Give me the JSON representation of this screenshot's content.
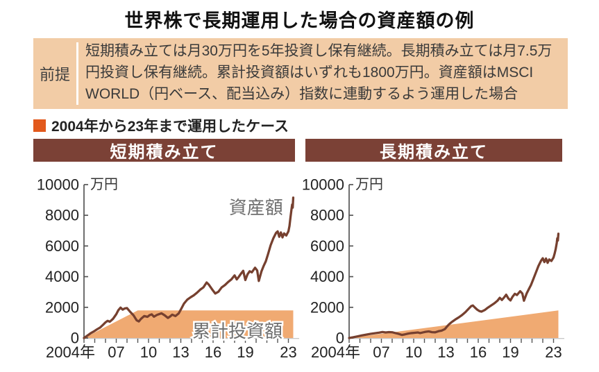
{
  "title": "世界株で長期運用した場合の資産額の例",
  "premise": {
    "label": "前提",
    "text": "短期積み立ては月30万円を5年投資し保有継続。長期積み立ては月7.5万円投資し保有継続。累計投資額はいずれも1800万円。資産額はMSCI WORLD（円ベース、配当込み）指数に連動するよう運用した場合",
    "bg_color": "#f2cca6"
  },
  "legend": {
    "marker_color": "#e2591c",
    "label": "2004年から23年まで運用したケース"
  },
  "colors": {
    "header_bar": "#7b4136",
    "header_text": "#ffffff",
    "line": "#76402f",
    "area": "#f0aa72",
    "axis": "#555555",
    "tick_text": "#222222",
    "label_gray": "#6e6e6e"
  },
  "chart_data": [
    {
      "type": "line",
      "title": "短期積み立て",
      "unit_label": "万円",
      "ylim": [
        0,
        10000
      ],
      "yticks": [
        0,
        2000,
        4000,
        6000,
        8000,
        10000
      ],
      "xlim": [
        2004,
        2024
      ],
      "xtick_labels": [
        {
          "label": "2004年",
          "year": 2004,
          "anchor": "end",
          "dx": 16
        },
        {
          "label": "07",
          "year": 2007
        },
        {
          "label": "10",
          "year": 2010
        },
        {
          "label": "13",
          "year": 2013
        },
        {
          "label": "16",
          "year": 2016
        },
        {
          "label": "19",
          "year": 2019
        },
        {
          "label": "23",
          "year": 2023
        }
      ],
      "series": [
        {
          "name": "累計投資額",
          "type": "area",
          "color": "#f0aa72",
          "points": [
            [
              2004,
              0
            ],
            [
              2009,
              1800
            ],
            [
              2023.45,
              1800
            ]
          ]
        },
        {
          "name": "資産額",
          "type": "line",
          "color": "#76402f",
          "points": [
            [
              2004,
              0
            ],
            [
              2004.3,
              150
            ],
            [
              2004.6,
              300
            ],
            [
              2004.9,
              420
            ],
            [
              2005.2,
              560
            ],
            [
              2005.5,
              680
            ],
            [
              2005.8,
              880
            ],
            [
              2006,
              1020
            ],
            [
              2006.2,
              1120
            ],
            [
              2006.4,
              1060
            ],
            [
              2006.7,
              1250
            ],
            [
              2007,
              1550
            ],
            [
              2007.2,
              1820
            ],
            [
              2007.4,
              1980
            ],
            [
              2007.6,
              1850
            ],
            [
              2007.8,
              1930
            ],
            [
              2008,
              1950
            ],
            [
              2008.3,
              1700
            ],
            [
              2008.6,
              1480
            ],
            [
              2008.9,
              1150
            ],
            [
              2009.1,
              1080
            ],
            [
              2009.3,
              1250
            ],
            [
              2009.6,
              1430
            ],
            [
              2009.9,
              1380
            ],
            [
              2010.1,
              1490
            ],
            [
              2010.3,
              1540
            ],
            [
              2010.5,
              1390
            ],
            [
              2010.8,
              1510
            ],
            [
              2011,
              1560
            ],
            [
              2011.2,
              1610
            ],
            [
              2011.5,
              1480
            ],
            [
              2011.8,
              1310
            ],
            [
              2012,
              1400
            ],
            [
              2012.2,
              1520
            ],
            [
              2012.5,
              1430
            ],
            [
              2012.8,
              1600
            ],
            [
              2013,
              1850
            ],
            [
              2013.3,
              2250
            ],
            [
              2013.6,
              2500
            ],
            [
              2013.9,
              2650
            ],
            [
              2014.2,
              2780
            ],
            [
              2014.5,
              2950
            ],
            [
              2014.8,
              3150
            ],
            [
              2015.1,
              3300
            ],
            [
              2015.4,
              3620
            ],
            [
              2015.6,
              3480
            ],
            [
              2015.9,
              3180
            ],
            [
              2016.2,
              2900
            ],
            [
              2016.5,
              3020
            ],
            [
              2016.8,
              3300
            ],
            [
              2017.1,
              3450
            ],
            [
              2017.4,
              3650
            ],
            [
              2017.7,
              3820
            ],
            [
              2018,
              4080
            ],
            [
              2018.2,
              3820
            ],
            [
              2018.4,
              4000
            ],
            [
              2018.6,
              4200
            ],
            [
              2018.8,
              4380
            ],
            [
              2019,
              3780
            ],
            [
              2019.2,
              4150
            ],
            [
              2019.4,
              4350
            ],
            [
              2019.6,
              4280
            ],
            [
              2019.9,
              4580
            ],
            [
              2020.1,
              4400
            ],
            [
              2020.25,
              3720
            ],
            [
              2020.5,
              4350
            ],
            [
              2020.7,
              4700
            ],
            [
              2020.9,
              5000
            ],
            [
              2021.1,
              5450
            ],
            [
              2021.35,
              6050
            ],
            [
              2021.6,
              6500
            ],
            [
              2021.85,
              6850
            ],
            [
              2022,
              6950
            ],
            [
              2022.15,
              6600
            ],
            [
              2022.3,
              6880
            ],
            [
              2022.45,
              6560
            ],
            [
              2022.6,
              6820
            ],
            [
              2022.8,
              6680
            ],
            [
              2023,
              6950
            ],
            [
              2023.1,
              7300
            ],
            [
              2023.2,
              7900
            ],
            [
              2023.3,
              8450
            ],
            [
              2023.35,
              8700
            ],
            [
              2023.4,
              8500
            ],
            [
              2023.45,
              9150
            ]
          ]
        }
      ],
      "annotations": [
        {
          "text": "資産額",
          "year": 2022.5,
          "value": 8500,
          "anchor": "end",
          "size": 26
        },
        {
          "text": "累計投資額",
          "year": 2022.45,
          "value": 450,
          "anchor": "end",
          "size": 26,
          "halo": true
        }
      ]
    },
    {
      "type": "line",
      "title": "長期積み立て",
      "unit_label": "万円",
      "ylim": [
        0,
        10000
      ],
      "yticks": [
        0,
        2000,
        4000,
        6000,
        8000,
        10000
      ],
      "xlim": [
        2004,
        2024
      ],
      "xtick_labels": [
        {
          "label": "2004年",
          "year": 2004,
          "anchor": "end",
          "dx": 16
        },
        {
          "label": "07",
          "year": 2007
        },
        {
          "label": "10",
          "year": 2010
        },
        {
          "label": "13",
          "year": 2013
        },
        {
          "label": "16",
          "year": 2016
        },
        {
          "label": "19",
          "year": 2019
        },
        {
          "label": "23",
          "year": 2023
        }
      ],
      "series": [
        {
          "name": "累計投資額",
          "type": "area",
          "color": "#f0aa72",
          "points": [
            [
              2004,
              0
            ],
            [
              2023.45,
              1800
            ]
          ]
        },
        {
          "name": "資産額",
          "type": "line",
          "color": "#76402f",
          "points": [
            [
              2004,
              0
            ],
            [
              2004.4,
              50
            ],
            [
              2004.8,
              110
            ],
            [
              2005.2,
              170
            ],
            [
              2005.6,
              220
            ],
            [
              2006,
              270
            ],
            [
              2006.4,
              310
            ],
            [
              2006.8,
              350
            ],
            [
              2007.1,
              390
            ],
            [
              2007.4,
              360
            ],
            [
              2007.7,
              385
            ],
            [
              2008,
              375
            ],
            [
              2008.3,
              320
            ],
            [
              2008.6,
              270
            ],
            [
              2008.9,
              200
            ],
            [
              2009.2,
              240
            ],
            [
              2009.5,
              290
            ],
            [
              2009.8,
              320
            ],
            [
              2010.1,
              340
            ],
            [
              2010.4,
              360
            ],
            [
              2010.6,
              320
            ],
            [
              2010.9,
              370
            ],
            [
              2011.1,
              400
            ],
            [
              2011.4,
              430
            ],
            [
              2011.7,
              380
            ],
            [
              2012,
              370
            ],
            [
              2012.3,
              440
            ],
            [
              2012.6,
              480
            ],
            [
              2012.9,
              580
            ],
            [
              2013.1,
              750
            ],
            [
              2013.3,
              900
            ],
            [
              2013.5,
              1020
            ],
            [
              2013.7,
              1120
            ],
            [
              2013.9,
              1220
            ],
            [
              2014.2,
              1350
            ],
            [
              2014.5,
              1500
            ],
            [
              2014.8,
              1680
            ],
            [
              2015.1,
              1900
            ],
            [
              2015.35,
              2080
            ],
            [
              2015.5,
              2120
            ],
            [
              2015.7,
              1980
            ],
            [
              2015.9,
              1850
            ],
            [
              2016.1,
              1760
            ],
            [
              2016.3,
              1720
            ],
            [
              2016.6,
              1820
            ],
            [
              2016.9,
              1980
            ],
            [
              2017.2,
              2120
            ],
            [
              2017.5,
              2260
            ],
            [
              2017.8,
              2440
            ],
            [
              2018,
              2620
            ],
            [
              2018.2,
              2480
            ],
            [
              2018.4,
              2640
            ],
            [
              2018.6,
              2820
            ],
            [
              2018.8,
              2580
            ],
            [
              2019,
              2450
            ],
            [
              2019.2,
              2700
            ],
            [
              2019.4,
              2880
            ],
            [
              2019.6,
              2800
            ],
            [
              2019.9,
              3050
            ],
            [
              2020.1,
              2900
            ],
            [
              2020.25,
              2430
            ],
            [
              2020.5,
              2900
            ],
            [
              2020.7,
              3180
            ],
            [
              2020.9,
              3450
            ],
            [
              2021.1,
              3800
            ],
            [
              2021.35,
              4250
            ],
            [
              2021.6,
              4700
            ],
            [
              2021.85,
              5050
            ],
            [
              2022,
              5200
            ],
            [
              2022.15,
              4950
            ],
            [
              2022.3,
              5180
            ],
            [
              2022.45,
              4900
            ],
            [
              2022.6,
              5120
            ],
            [
              2022.8,
              5020
            ],
            [
              2023,
              5250
            ],
            [
              2023.1,
              5500
            ],
            [
              2023.2,
              5800
            ],
            [
              2023.3,
              6200
            ],
            [
              2023.35,
              6500
            ],
            [
              2023.4,
              6350
            ],
            [
              2023.45,
              6800
            ]
          ]
        }
      ],
      "annotations": []
    }
  ]
}
